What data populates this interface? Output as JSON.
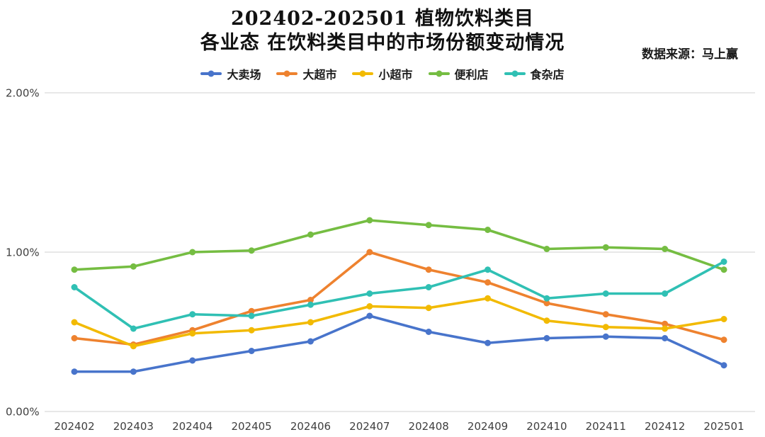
{
  "title": {
    "line1": "202402-202501  植物饮料类目",
    "line2": "各业态  在饮料类目中的市场份额变动情况"
  },
  "source": "数据来源：马上赢",
  "chart_data": {
    "type": "line",
    "title": "202402-202501 植物饮料类目 各业态 在饮料类目中的市场份额变动情况",
    "xlabel": "",
    "ylabel": "",
    "ylim": [
      0,
      2
    ],
    "y_ticks": [
      {
        "value": 0,
        "label": "0.00%"
      },
      {
        "value": 1,
        "label": "1.00%"
      },
      {
        "value": 2,
        "label": "2.00%"
      }
    ],
    "grid": true,
    "legend_position": "top",
    "unit": "%",
    "categories": [
      "202402",
      "202403",
      "202404",
      "202405",
      "202406",
      "202407",
      "202408",
      "202409",
      "202410",
      "202411",
      "202412",
      "202501"
    ],
    "series": [
      {
        "name": "大卖场",
        "color": "#4874CB",
        "values": [
          0.25,
          0.25,
          0.32,
          0.38,
          0.44,
          0.6,
          0.5,
          0.43,
          0.46,
          0.47,
          0.46,
          0.29
        ]
      },
      {
        "name": "大超市",
        "color": "#EE822F",
        "values": [
          0.46,
          0.42,
          0.51,
          0.63,
          0.7,
          1.0,
          0.89,
          0.81,
          0.68,
          0.61,
          0.55,
          0.45
        ]
      },
      {
        "name": "小超市",
        "color": "#F2BA02",
        "values": [
          0.56,
          0.41,
          0.49,
          0.51,
          0.56,
          0.66,
          0.65,
          0.71,
          0.57,
          0.53,
          0.52,
          0.58
        ]
      },
      {
        "name": "便利店",
        "color": "#75BD42",
        "values": [
          0.89,
          0.91,
          1.0,
          1.01,
          1.11,
          1.2,
          1.17,
          1.14,
          1.02,
          1.03,
          1.02,
          0.89
        ]
      },
      {
        "name": "食杂店",
        "color": "#30C0B4",
        "values": [
          0.78,
          0.52,
          0.61,
          0.6,
          0.67,
          0.74,
          0.78,
          0.89,
          0.71,
          0.74,
          0.74,
          0.94
        ]
      }
    ],
    "style": {
      "gridline_color": "#d9d9d9",
      "tick_label_color": "#3f3f3f",
      "background": "#ffffff"
    }
  }
}
